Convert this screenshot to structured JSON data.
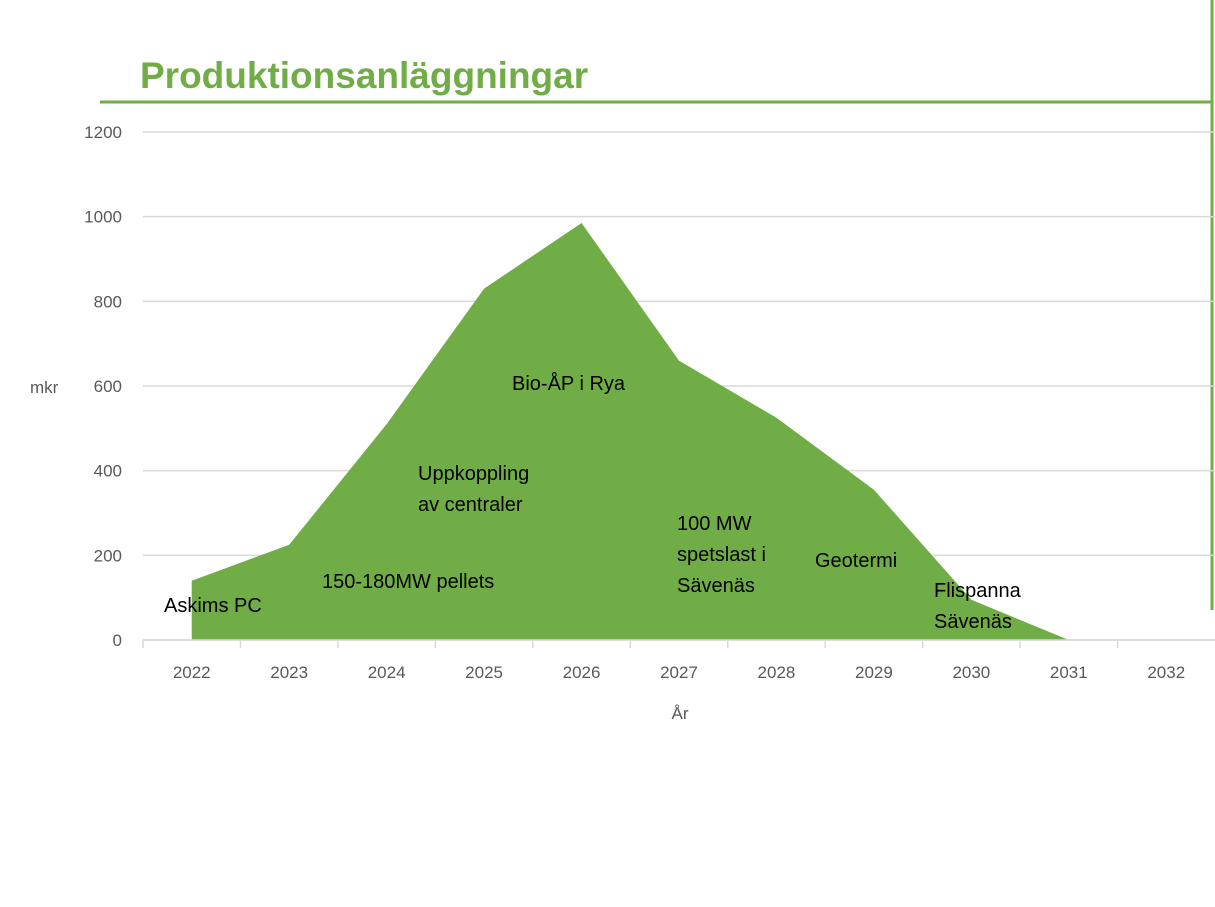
{
  "chart_data": {
    "type": "area",
    "title": "Produktionsanläggningar",
    "categories": [
      "2022",
      "2023",
      "2024",
      "2025",
      "2026",
      "2027",
      "2028",
      "2029",
      "2030",
      "2031",
      "2032"
    ],
    "values": [
      140,
      225,
      510,
      830,
      985,
      660,
      525,
      355,
      95,
      0,
      null
    ],
    "color": "#70ad47",
    "ylim": [
      0,
      1200
    ],
    "yticks": [
      0,
      200,
      400,
      600,
      800,
      1000,
      1200
    ],
    "grid": true,
    "y_label": "mkr",
    "x_label": "År",
    "annotations": [
      "Askims PC",
      "150-180MW pellets",
      [
        "Uppkoppling",
        "av centraler"
      ],
      "Bio-ÅP i Rya",
      [
        "100 MW",
        "spetslast i",
        "Sävenäs"
      ],
      "Geotermi",
      [
        "Flispanna",
        "Sävenäs"
      ]
    ]
  }
}
